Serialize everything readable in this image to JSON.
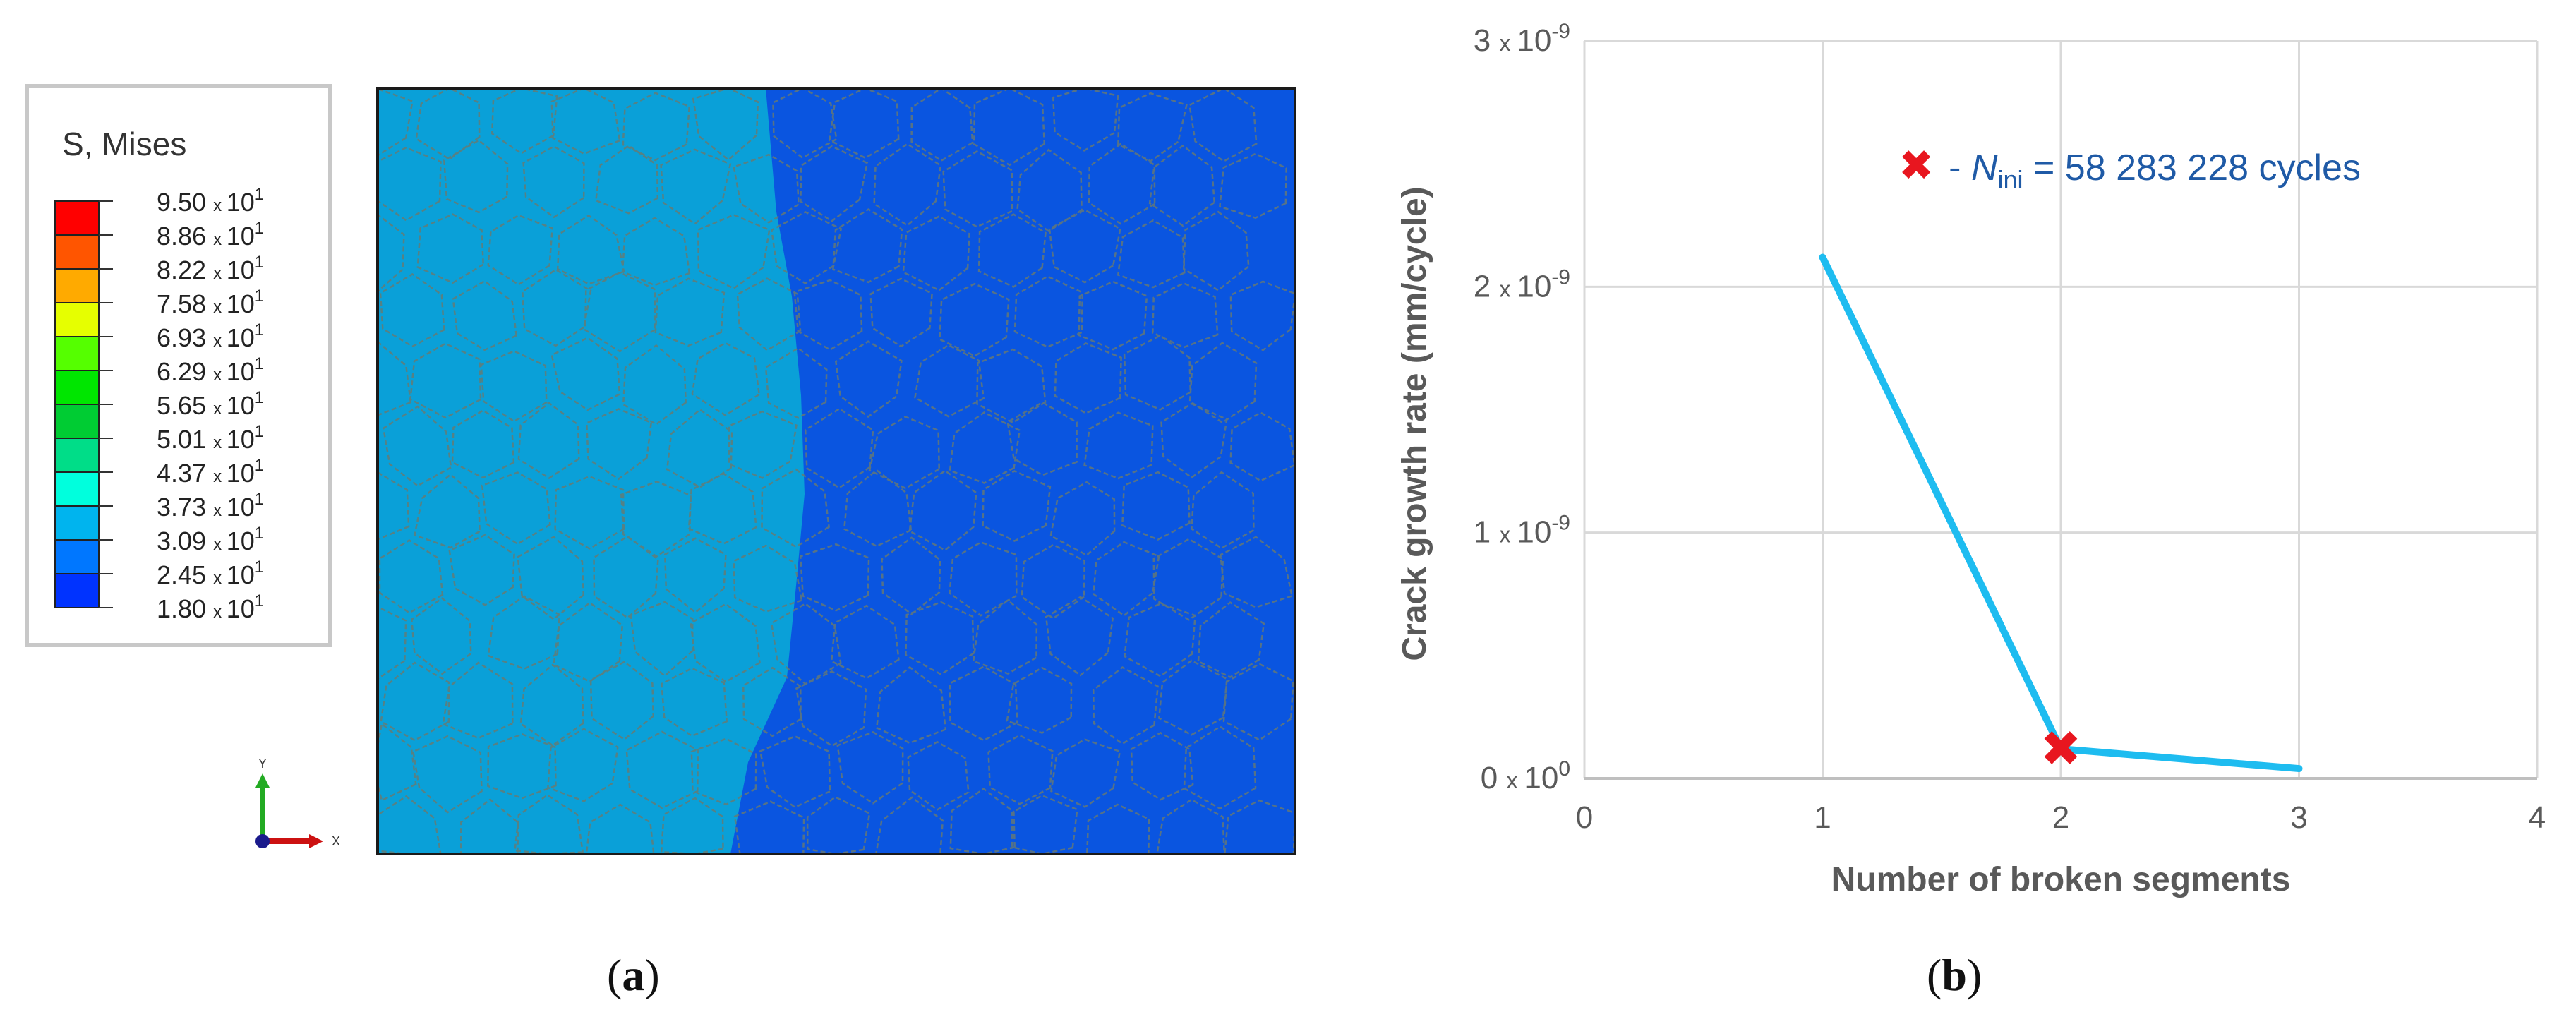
{
  "panels": [
    {
      "id": "a",
      "caption": "(a)",
      "legend": {
        "title": "S, Mises",
        "entries": [
          {
            "value": "9.50",
            "exp": "1",
            "color": "#ff0000"
          },
          {
            "value": "8.86",
            "exp": "1",
            "color": "#ff5500"
          },
          {
            "value": "8.22",
            "exp": "1",
            "color": "#ffaa00"
          },
          {
            "value": "7.58",
            "exp": "1",
            "color": "#e6ff00"
          },
          {
            "value": "6.93",
            "exp": "1",
            "color": "#55ff00"
          },
          {
            "value": "6.29",
            "exp": "1",
            "color": "#00e600"
          },
          {
            "value": "5.65",
            "exp": "1",
            "color": "#00cc33"
          },
          {
            "value": "5.01",
            "exp": "1",
            "color": "#00dd88"
          },
          {
            "value": "4.37",
            "exp": "1",
            "color": "#00ffdd"
          },
          {
            "value": "3.73",
            "exp": "1",
            "color": "#00b4ee"
          },
          {
            "value": "3.09",
            "exp": "1",
            "color": "#0077ff"
          },
          {
            "value": "2.45",
            "exp": "1",
            "color": "#0033ff"
          },
          {
            "value": "1.80",
            "exp": "1",
            "color": "#0000dd"
          }
        ],
        "times": "x",
        "base": "10"
      },
      "triad": {
        "y": "Y",
        "x": "X"
      },
      "field_colors": {
        "left": "#0aa0d8",
        "right": "#0a55e0",
        "mesh": "#6a7a70"
      }
    }
  ],
  "chart_caption": "(b)",
  "chart_data": {
    "type": "line",
    "xlabel": "Number of broken segments",
    "ylabel": "Crack growth rate (mm/cycle)",
    "xlim": [
      0,
      4
    ],
    "ylim": [
      0,
      3e-09
    ],
    "grid": true,
    "x_ticks": [
      "0",
      "1",
      "2",
      "3",
      "4"
    ],
    "y_ticks": [
      {
        "value": 0,
        "mantissa": "0",
        "times": "x",
        "base": "10",
        "exp": "0"
      },
      {
        "value": 1e-09,
        "mantissa": "1",
        "times": "x",
        "base": "10",
        "exp": "-9"
      },
      {
        "value": 2e-09,
        "mantissa": "2",
        "times": "x",
        "base": "10",
        "exp": "-9"
      },
      {
        "value": 3e-09,
        "mantissa": "3",
        "times": "x",
        "base": "10",
        "exp": "-9"
      }
    ],
    "series": [
      {
        "x": [
          1,
          2,
          3
        ],
        "y": [
          2.12e-09,
          1.2e-10,
          4e-11
        ],
        "color": "#1ebcf0"
      }
    ],
    "marker": {
      "x": 2,
      "y": 1.2e-10,
      "symbol": "✖",
      "color": "#e8161f"
    },
    "annotation": {
      "symbol": "✖",
      "dash": "-",
      "var": "N",
      "sub": "ini",
      "rest": "= 58 283 228 cycles",
      "symbol_color": "#e8161f",
      "text_color": "#1f5aa6"
    }
  }
}
